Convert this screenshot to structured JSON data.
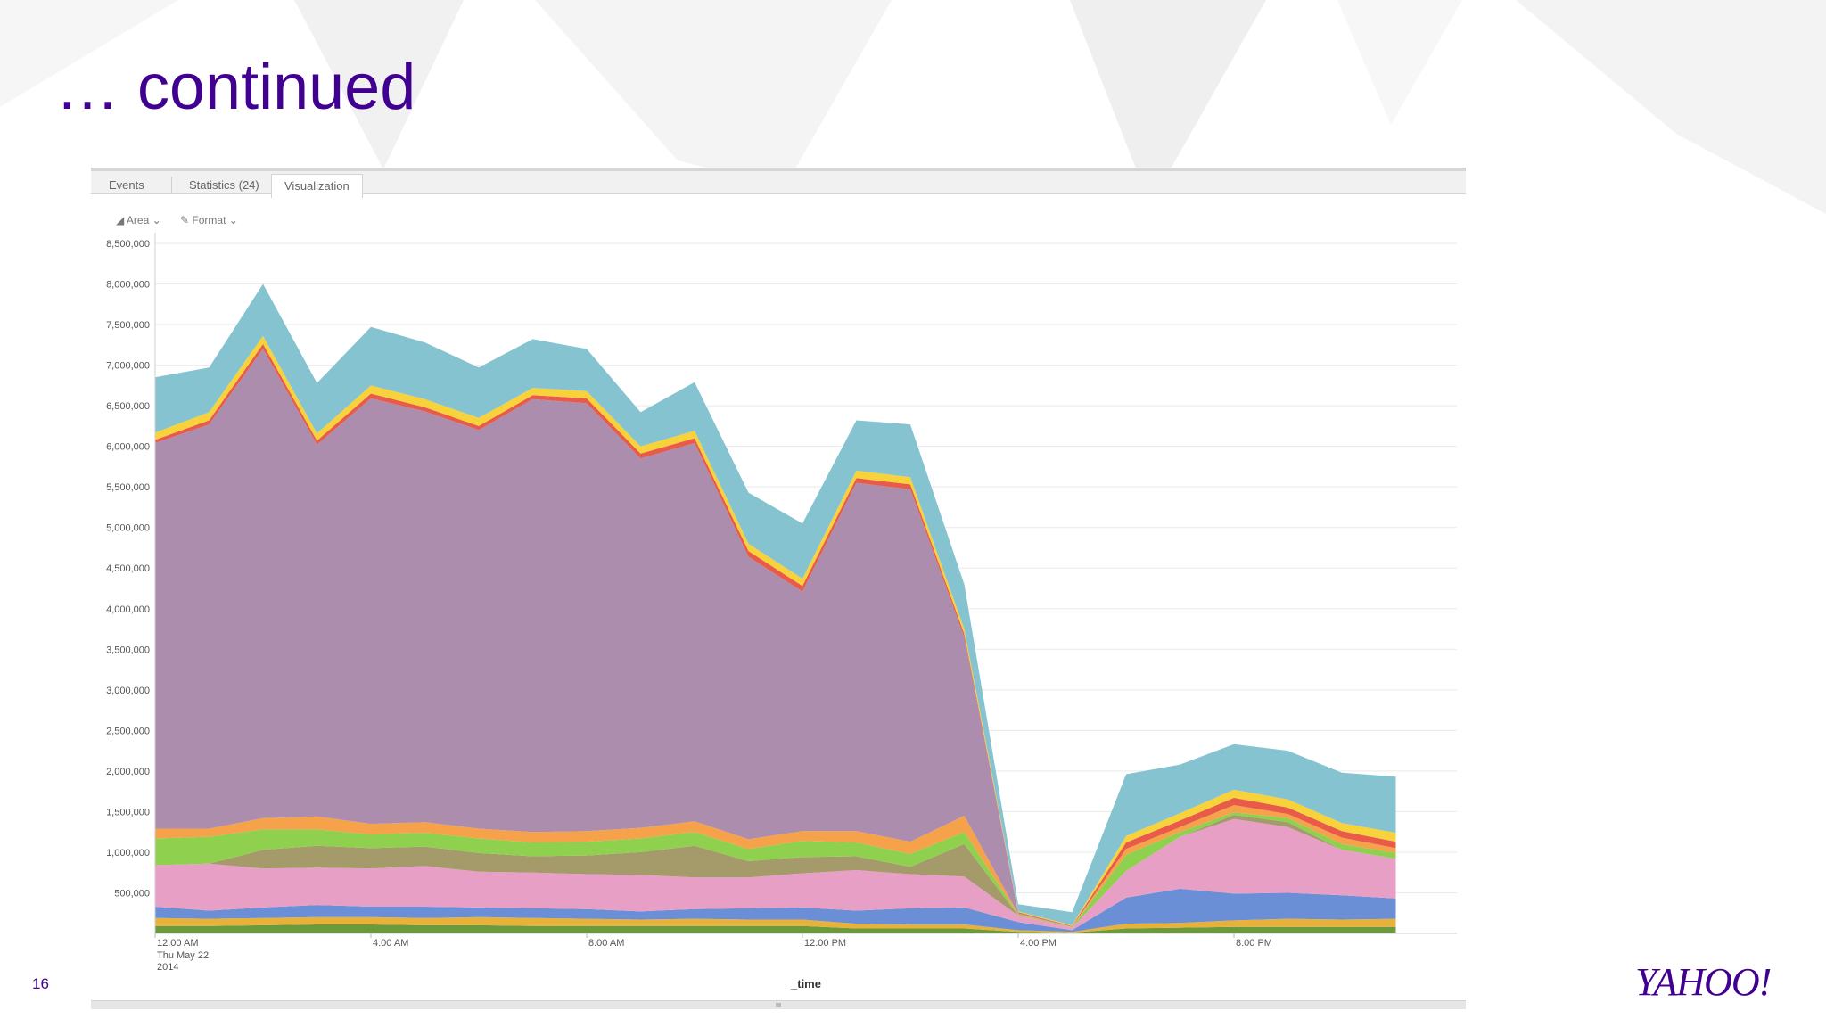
{
  "slide": {
    "title": "… continued",
    "page_number": "16",
    "logo": "YAHOO!"
  },
  "tabs": [
    {
      "label": "Events"
    },
    {
      "label": "Statistics (24)"
    },
    {
      "label": "Visualization",
      "active": true
    }
  ],
  "toolbar": {
    "chart_type_label": "Area",
    "format_label": "Format"
  },
  "chart_data": {
    "type": "area",
    "stacked": true,
    "title": "",
    "xlabel": "_time",
    "ylabel": "",
    "ylim": [
      0,
      8500000
    ],
    "y_ticks": [
      500000,
      1000000,
      1500000,
      2000000,
      2500000,
      3000000,
      3500000,
      4000000,
      4500000,
      5000000,
      5500000,
      6000000,
      6500000,
      7000000,
      7500000,
      8000000,
      8500000
    ],
    "y_tick_labels": [
      "500,000",
      "1,000,000",
      "1,500,000",
      "2,000,000",
      "2,500,000",
      "3,000,000",
      "3,500,000",
      "4,000,000",
      "4,500,000",
      "5,000,000",
      "5,500,000",
      "6,000,000",
      "6,500,000",
      "7,000,000",
      "7,500,000",
      "8,000,000",
      "8,500,000"
    ],
    "x_ticks": [
      {
        "index": 0,
        "label": "12:00 AM",
        "sub": [
          "Thu May 22",
          "2014"
        ]
      },
      {
        "index": 4,
        "label": "4:00 AM"
      },
      {
        "index": 8,
        "label": "8:00 AM"
      },
      {
        "index": 12,
        "label": "12:00 PM"
      },
      {
        "index": 16,
        "label": "4:00 PM"
      },
      {
        "index": 20,
        "label": "8:00 PM"
      }
    ],
    "grid": true,
    "legend": "none",
    "num_points": 24,
    "series": [
      {
        "color": "#6a9a3c",
        "values": [
          90000,
          90000,
          100000,
          110000,
          110000,
          100000,
          100000,
          90000,
          90000,
          90000,
          90000,
          90000,
          90000,
          60000,
          60000,
          60000,
          20000,
          10000,
          60000,
          70000,
          80000,
          80000,
          80000,
          80000
        ]
      },
      {
        "color": "#e8b23a",
        "values": [
          100000,
          90000,
          90000,
          90000,
          90000,
          90000,
          100000,
          100000,
          90000,
          80000,
          90000,
          80000,
          80000,
          60000,
          50000,
          50000,
          20000,
          10000,
          60000,
          60000,
          80000,
          100000,
          90000,
          100000
        ]
      },
      {
        "color": "#6b8fd6",
        "values": [
          140000,
          100000,
          130000,
          150000,
          130000,
          140000,
          120000,
          120000,
          120000,
          100000,
          120000,
          140000,
          150000,
          160000,
          200000,
          210000,
          100000,
          20000,
          320000,
          420000,
          330000,
          320000,
          300000,
          250000
        ]
      },
      {
        "color": "#e79fc6",
        "values": [
          510000,
          580000,
          480000,
          460000,
          470000,
          500000,
          440000,
          440000,
          430000,
          450000,
          390000,
          380000,
          420000,
          500000,
          420000,
          380000,
          80000,
          30000,
          330000,
          640000,
          920000,
          810000,
          560000,
          490000
        ]
      },
      {
        "color": "#a59a6a",
        "values": [
          0,
          0,
          230000,
          270000,
          250000,
          240000,
          230000,
          200000,
          230000,
          280000,
          390000,
          200000,
          200000,
          170000,
          90000,
          400000,
          0,
          0,
          0,
          0,
          50000,
          60000,
          0,
          0
        ]
      },
      {
        "color": "#8fd14f",
        "values": [
          330000,
          330000,
          250000,
          200000,
          170000,
          170000,
          180000,
          170000,
          170000,
          170000,
          170000,
          150000,
          200000,
          170000,
          160000,
          150000,
          10000,
          5000,
          200000,
          60000,
          30000,
          50000,
          70000,
          70000
        ]
      },
      {
        "color": "#f5a24a",
        "values": [
          120000,
          100000,
          140000,
          160000,
          130000,
          130000,
          120000,
          130000,
          130000,
          130000,
          130000,
          120000,
          120000,
          140000,
          150000,
          200000,
          10000,
          5000,
          70000,
          60000,
          90000,
          50000,
          80000,
          60000
        ]
      },
      {
        "color": "#ac8dae",
        "values": [
          4750000,
          4980000,
          5780000,
          4580000,
          5240000,
          5060000,
          4910000,
          5330000,
          5270000,
          4550000,
          4660000,
          3480000,
          2950000,
          4290000,
          4340000,
          2200000,
          10000,
          5000,
          0,
          0,
          0,
          0,
          0,
          0
        ]
      },
      {
        "color": "#e85b48",
        "values": [
          40000,
          50000,
          60000,
          50000,
          60000,
          50000,
          50000,
          50000,
          60000,
          60000,
          60000,
          70000,
          70000,
          60000,
          60000,
          40000,
          10000,
          5000,
          80000,
          80000,
          90000,
          80000,
          80000,
          80000
        ]
      },
      {
        "color": "#f7d23a",
        "values": [
          90000,
          100000,
          100000,
          90000,
          100000,
          100000,
          100000,
          90000,
          90000,
          90000,
          90000,
          90000,
          90000,
          90000,
          90000,
          60000,
          10000,
          10000,
          80000,
          90000,
          100000,
          100000,
          100000,
          110000
        ]
      },
      {
        "color": "#86c3d1",
        "values": [
          680000,
          550000,
          640000,
          620000,
          720000,
          700000,
          620000,
          600000,
          520000,
          420000,
          600000,
          630000,
          680000,
          620000,
          650000,
          550000,
          90000,
          160000,
          760000,
          600000,
          560000,
          600000,
          620000,
          690000
        ]
      }
    ]
  }
}
